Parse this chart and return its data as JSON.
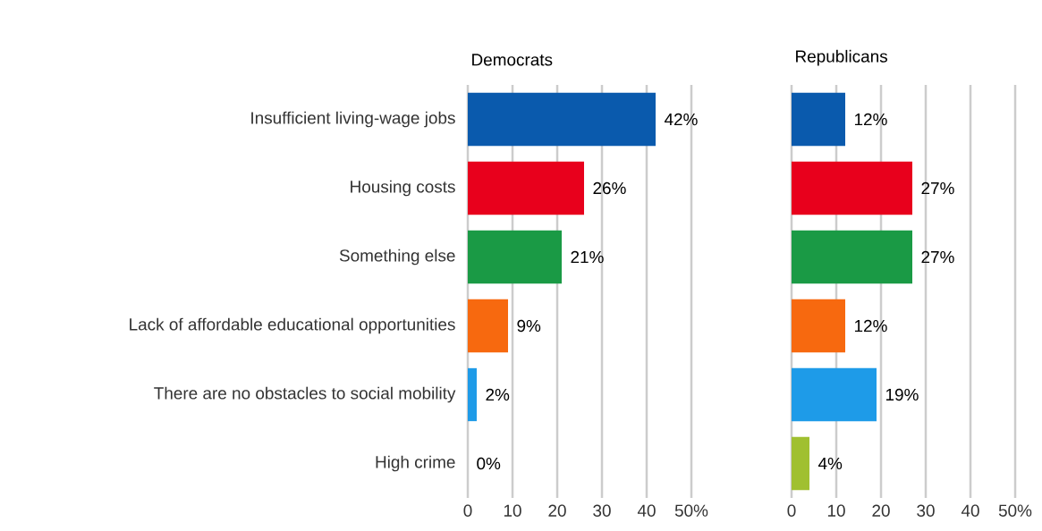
{
  "chart_data": [
    {
      "type": "bar",
      "orientation": "horizontal",
      "title": "Democrats",
      "categories": [
        "Insufficient living-wage jobs",
        "Housing costs",
        "Something else",
        "Lack of affordable educational opportunities",
        "There are no obstacles to social mobility",
        "High crime"
      ],
      "values": [
        42,
        26,
        21,
        9,
        2,
        0
      ],
      "value_labels": [
        "42%",
        "26%",
        "21%",
        "9%",
        "2%",
        "0%"
      ],
      "colors": [
        "#0a5aad",
        "#e8001c",
        "#1a9a45",
        "#f7690f",
        "#1e9be8",
        "#a0c030"
      ],
      "xlim": [
        0,
        50
      ],
      "xticks": [
        0,
        10,
        20,
        30,
        40,
        {
          "value": 50,
          "label": "50%"
        }
      ],
      "grid": "x"
    },
    {
      "type": "bar",
      "orientation": "horizontal",
      "title": "Republicans",
      "categories": [
        null,
        null,
        null,
        null,
        null,
        null
      ],
      "values": [
        12,
        27,
        27,
        12,
        19,
        4
      ],
      "value_labels": [
        "12%",
        "27%",
        "27%",
        "12%",
        "19%",
        "4%"
      ],
      "colors": [
        "#0a5aad",
        "#e8001c",
        "#1a9a45",
        "#f7690f",
        "#1e9be8",
        "#a0c030"
      ],
      "xlim": [
        0,
        50
      ],
      "xticks": [
        0,
        10,
        20,
        30,
        40,
        {
          "value": 50,
          "label": "50%"
        }
      ],
      "grid": "x",
      "tick_labels": "x"
    }
  ]
}
